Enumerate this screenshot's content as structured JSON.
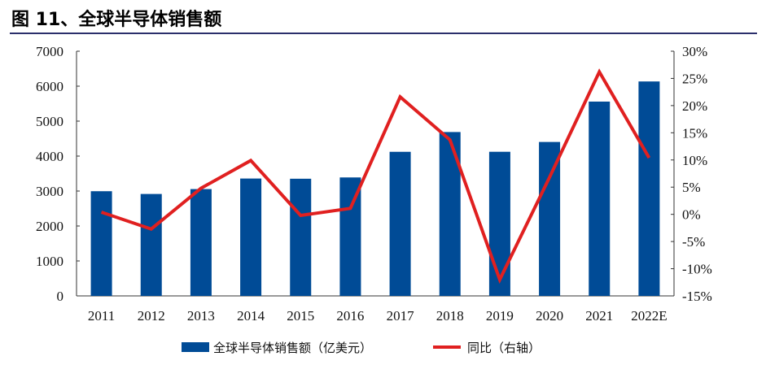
{
  "title": "图 11、全球半导体销售额",
  "chart_data": {
    "type": "bar+line",
    "categories": [
      "2011",
      "2012",
      "2013",
      "2014",
      "2015",
      "2016",
      "2017",
      "2018",
      "2019",
      "2020",
      "2021",
      "2022E"
    ],
    "series": [
      {
        "name": "全球半导体销售额（亿美元）",
        "type": "bar",
        "axis": "left",
        "color": "#004b96",
        "values": [
          2995,
          2916,
          3056,
          3358,
          3352,
          3389,
          4122,
          4688,
          4123,
          4404,
          5559,
          6135
        ]
      },
      {
        "name": "同比（右轴）",
        "type": "line",
        "axis": "right",
        "color": "#e02020",
        "values": [
          0.4,
          -2.7,
          4.8,
          9.9,
          -0.2,
          1.1,
          21.6,
          13.7,
          -12.0,
          6.8,
          26.2,
          10.4
        ]
      }
    ],
    "left_axis": {
      "ylim": [
        0,
        7000
      ],
      "ticks": [
        "0",
        "1000",
        "2000",
        "3000",
        "4000",
        "5000",
        "6000",
        "7000"
      ]
    },
    "right_axis": {
      "ylim": [
        -15,
        30
      ],
      "ticks": [
        "-15%",
        "-10%",
        "-5%",
        "0%",
        "5%",
        "10%",
        "15%",
        "20%",
        "25%",
        "30%"
      ]
    },
    "grid": false,
    "legend": "bottom"
  }
}
